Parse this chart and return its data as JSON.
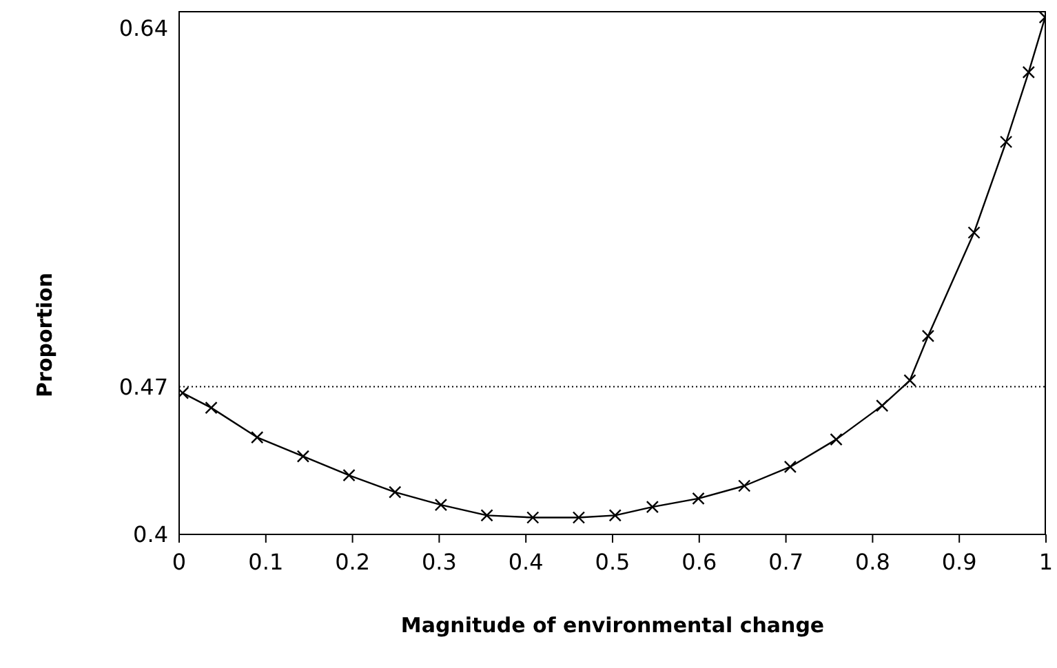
{
  "chart_data": {
    "type": "line",
    "xlabel": "Magnitude of environmental change",
    "ylabel": "Proportion",
    "x": [
      0.004,
      0.037,
      0.09,
      0.143,
      0.196,
      0.249,
      0.302,
      0.355,
      0.408,
      0.461,
      0.503,
      0.546,
      0.599,
      0.652,
      0.705,
      0.758,
      0.811,
      0.843,
      0.864,
      0.917,
      0.954,
      0.98,
      0.999
    ],
    "series": [
      {
        "color": "#000000",
        "values": [
          0.467,
          0.46,
          0.446,
          0.437,
          0.428,
          0.42,
          0.414,
          0.409,
          0.408,
          0.408,
          0.409,
          0.413,
          0.417,
          0.423,
          0.432,
          0.445,
          0.461,
          0.473,
          0.494,
          0.543,
          0.586,
          0.619,
          0.645
        ]
      }
    ],
    "xlim": [
      0,
      1
    ],
    "xticks": [
      0,
      0.1,
      0.2,
      0.3,
      0.4,
      0.5,
      0.6,
      0.7,
      0.8,
      0.9,
      1
    ],
    "ylim": [
      0.4,
      0.648
    ],
    "yticks": [
      0.4,
      0.47,
      0.64
    ],
    "ref_lines": [
      {
        "axis": "y",
        "value": 0.47,
        "line_style": "dotted",
        "color": "#000000"
      }
    ],
    "grid": false,
    "marker": "cross",
    "line_style": "solid"
  }
}
